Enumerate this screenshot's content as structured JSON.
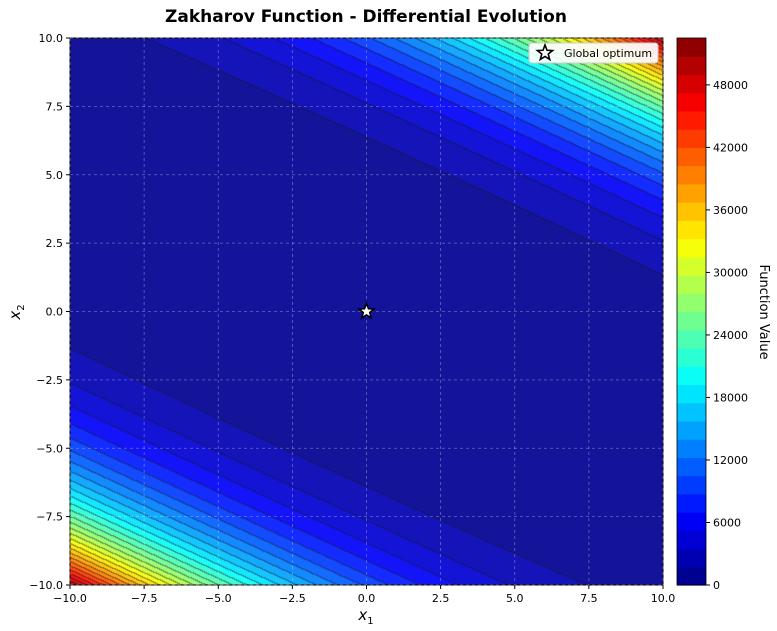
{
  "chart_data": {
    "type": "heatmap",
    "subtype": "filled-contour",
    "title": "Zakharov Function - Differential Evolution",
    "xlabel": "x",
    "xlabel_sub": "1",
    "ylabel": "x",
    "ylabel_sub": "2",
    "function": "zakharov",
    "xlim": [
      -10,
      10
    ],
    "ylim": [
      -10,
      10
    ],
    "x_ticks": [
      -10,
      -7.5,
      -5,
      -2.5,
      0,
      2.5,
      5,
      7.5,
      10
    ],
    "x_tick_labels": [
      "−10.0",
      "−7.5",
      "−5.0",
      "−2.5",
      "0.0",
      "2.5",
      "5.0",
      "7.5",
      "10.0"
    ],
    "y_ticks": [
      -10,
      -7.5,
      -5,
      -2.5,
      0,
      2.5,
      5,
      7.5,
      10
    ],
    "y_tick_labels": [
      "−10.0",
      "−7.5",
      "−5.0",
      "−2.5",
      "0.0",
      "2.5",
      "5.0",
      "7.5",
      "10.0"
    ],
    "grid": true,
    "colormap": "jet",
    "contour_levels": 30,
    "colorbar": {
      "label": "Function Value",
      "range": [
        0,
        52500
      ],
      "ticks": [
        0,
        6000,
        12000,
        18000,
        24000,
        30000,
        36000,
        42000,
        48000
      ],
      "tick_labels": [
        "0",
        "6000",
        "12000",
        "18000",
        "24000",
        "30000",
        "36000",
        "42000",
        "48000"
      ]
    },
    "markers": [
      {
        "name": "Global optimum",
        "x": 0,
        "y": 0,
        "symbol": "star",
        "color": "#ffffff",
        "edge": "#000000"
      }
    ],
    "legend": {
      "position": "top-right",
      "entries": [
        "Global optimum"
      ]
    }
  }
}
